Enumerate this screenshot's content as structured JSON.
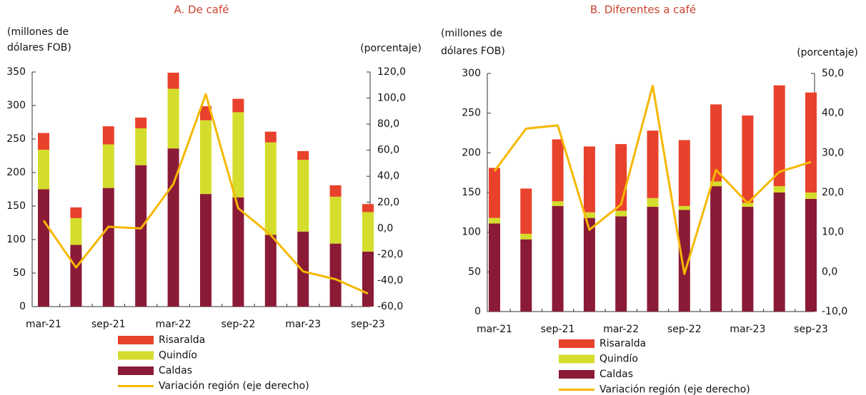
{
  "chart_data": [
    {
      "type": "bar",
      "stacked": true,
      "title": "A. De café",
      "ylabel": [
        "(millones de",
        "dólares FOB)"
      ],
      "y2label": "(porcentaje)",
      "categories": [
        "mar-21",
        null,
        "sep-21",
        null,
        "mar-22",
        null,
        "sep-22",
        null,
        "mar-23",
        null,
        "sep-23"
      ],
      "series": [
        {
          "name": "Caldas",
          "color": "#8b1a37",
          "values": [
            175,
            92,
            177,
            211,
            236,
            168,
            163,
            107,
            112,
            94,
            82
          ]
        },
        {
          "name": "Quindío",
          "color": "#d4dd2c",
          "values": [
            59,
            40,
            65,
            55,
            89,
            110,
            127,
            138,
            107,
            70,
            59
          ]
        },
        {
          "name": "Risaralda",
          "color": "#e8412c",
          "values": [
            25,
            16,
            27,
            16,
            24,
            21,
            20,
            16,
            13,
            17,
            12
          ]
        },
        {
          "name": "Variación región (eje derecho)",
          "color": "#f5b800",
          "type": "line",
          "axis": "y2",
          "values": [
            6,
            -30,
            1.3,
            0,
            34,
            103,
            15.5,
            -5,
            -33,
            -39,
            -50
          ]
        }
      ],
      "ylim": [
        0,
        350
      ],
      "yticks": [
        0,
        50,
        100,
        150,
        200,
        250,
        300,
        350
      ],
      "y2lim": [
        -60,
        120
      ],
      "y2ticks": [
        {
          "value": -60,
          "label": "-60,0"
        },
        {
          "value": -40,
          "label": "-40,0"
        },
        {
          "value": -20,
          "label": "-20,0"
        },
        {
          "value": 0,
          "label": "0,0"
        },
        {
          "value": 20,
          "label": "20,0"
        },
        {
          "value": 40,
          "label": "40,0"
        },
        {
          "value": 60,
          "label": "60,0"
        },
        {
          "value": 80,
          "label": "80,0"
        },
        {
          "value": 100,
          "label": "100,0"
        },
        {
          "value": 120,
          "label": "120,0"
        }
      ],
      "grid": false,
      "legend": "bottom"
    },
    {
      "type": "bar",
      "stacked": true,
      "title": "B. Diferentes a café",
      "ylabel": [
        "(millones de",
        "dólares FOB)"
      ],
      "y2label": "(porcentaje)",
      "categories": [
        "mar-21",
        null,
        "sep-21",
        null,
        "mar-22",
        null,
        "sep-22",
        null,
        "mar-23",
        null,
        "sep-23"
      ],
      "series": [
        {
          "name": "Caldas",
          "color": "#8b1a37",
          "values": [
            111,
            91,
            133,
            118,
            120,
            132,
            128,
            158,
            132,
            150,
            142
          ]
        },
        {
          "name": "Quindío",
          "color": "#d4dd2c",
          "values": [
            7,
            7,
            6,
            7,
            7,
            11,
            5,
            6,
            5,
            8,
            8
          ]
        },
        {
          "name": "Risaralda",
          "color": "#e8412c",
          "values": [
            63,
            57,
            78,
            83,
            84,
            85,
            83,
            97,
            110,
            127,
            126
          ]
        },
        {
          "name": "Variación región (eje derecho)",
          "color": "#f5b800",
          "type": "line",
          "axis": "y2",
          "values": [
            25.4,
            36.1,
            36.9,
            10.6,
            17,
            46.9,
            -0.5,
            25.7,
            17.3,
            25.2,
            27.7
          ]
        }
      ],
      "ylim": [
        0,
        300
      ],
      "yticks": [
        0,
        50,
        100,
        150,
        200,
        250,
        300
      ],
      "y2lim": [
        -10,
        50
      ],
      "y2ticks": [
        {
          "value": -10,
          "label": "-10,0"
        },
        {
          "value": 0,
          "label": "0,0"
        },
        {
          "value": 10,
          "label": "10,0"
        },
        {
          "value": 20,
          "label": "20,0"
        },
        {
          "value": 30,
          "label": "30,0"
        },
        {
          "value": 40,
          "label": "40,0"
        },
        {
          "value": 50,
          "label": "50,0"
        }
      ],
      "grid": false,
      "legend": "bottom"
    }
  ]
}
